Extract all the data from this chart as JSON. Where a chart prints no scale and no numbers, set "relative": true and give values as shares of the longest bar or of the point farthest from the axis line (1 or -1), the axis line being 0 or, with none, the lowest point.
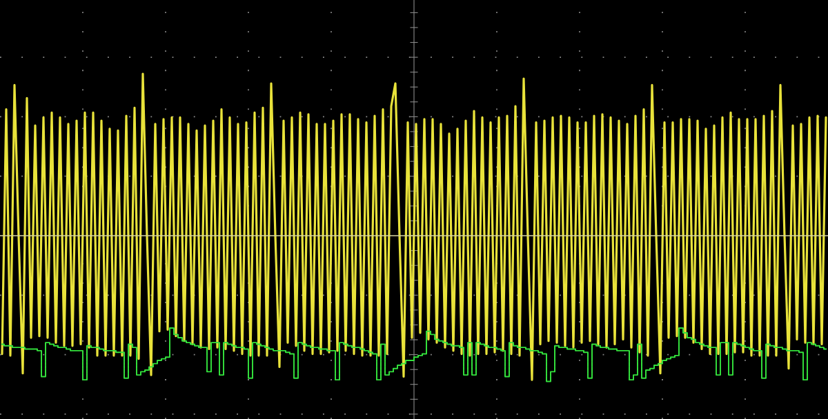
{
  "chart_data": {
    "type": "line",
    "relative": true,
    "grid": true,
    "categories": [
      null,
      null,
      null,
      null,
      null,
      null,
      null,
      null,
      null,
      null,
      null,
      null,
      null,
      null,
      null,
      null,
      null,
      null,
      null,
      null,
      null,
      null,
      null,
      null,
      null,
      null,
      null,
      null,
      null,
      null,
      null,
      null,
      null,
      null,
      null,
      null,
      null,
      null,
      null,
      null,
      null,
      null,
      null,
      null,
      null,
      null,
      null,
      null,
      null,
      null,
      null,
      null,
      null,
      null,
      null,
      null,
      null,
      null,
      null,
      null,
      null,
      null,
      null,
      null,
      null,
      null,
      null,
      null,
      null,
      null,
      null,
      null,
      null,
      null,
      null,
      null,
      null,
      null,
      null,
      null,
      null,
      null,
      null,
      null,
      null,
      null,
      null,
      null,
      null,
      null,
      null,
      null,
      null,
      null,
      null,
      null,
      null,
      null,
      null,
      null,
      null,
      null,
      null,
      null,
      null,
      null,
      null,
      null,
      null,
      null,
      null,
      null,
      null,
      null,
      null,
      null,
      null,
      null,
      null,
      null,
      null,
      null,
      null,
      null,
      null,
      null,
      null,
      null,
      null,
      null,
      null,
      null,
      null,
      null,
      null,
      null,
      null,
      null,
      null,
      null,
      null,
      null,
      null,
      null,
      null,
      null,
      null,
      null,
      null,
      null,
      null,
      null,
      null,
      null,
      null,
      null,
      null,
      null,
      null,
      null,
      null,
      null,
      null,
      null,
      null,
      null,
      null,
      null,
      null,
      null,
      null,
      null,
      null,
      null,
      null,
      null,
      null,
      null,
      null,
      null,
      null,
      null,
      null,
      null,
      null,
      null,
      null,
      null,
      null,
      null,
      null,
      null,
      null,
      null,
      null,
      null,
      null,
      null,
      null,
      null
    ],
    "ref_lines": [
      {
        "axis": "y",
        "value": 0,
        "color": "#d8d6a0"
      }
    ],
    "series": [
      {
        "color": "#e8e23a",
        "values": [
          -0.73,
          0.78,
          -0.74,
          0.93,
          0,
          -0.85,
          0.85,
          -0.63,
          0.68,
          -0.62,
          0.73,
          -0.63,
          0.76,
          -0.66,
          0.73,
          -0.68,
          0.69,
          -0.68,
          0.71,
          -0.67,
          0.76,
          -0.69,
          0.76,
          -0.74,
          0.71,
          -0.74,
          0.66,
          -0.74,
          0.65,
          -0.74,
          0.74,
          -0.74,
          0.79,
          -0.76,
          1.0,
          0,
          -0.86,
          0.69,
          -0.59,
          0.72,
          -0.58,
          0.73,
          -0.62,
          0.73,
          -0.65,
          0.69,
          -0.67,
          0.65,
          -0.69,
          0.68,
          -0.7,
          0.71,
          -0.69,
          0.78,
          -0.7,
          0.73,
          -0.71,
          0.69,
          -0.73,
          0.7,
          -0.74,
          0.76,
          -0.74,
          0.79,
          -0.74,
          0.94,
          0,
          -0.81,
          0.71,
          -0.66,
          0.73,
          -0.68,
          0.76,
          -0.71,
          0.75,
          -0.73,
          0.69,
          -0.73,
          0.69,
          -0.72,
          0.71,
          -0.71,
          0.75,
          -0.71,
          0.75,
          -0.73,
          0.72,
          -0.74,
          0.7,
          -0.74,
          0.74,
          -0.74,
          0.78,
          -0.73,
          0.8,
          0.94,
          0,
          -0.87,
          0.7,
          -0.63,
          0.69,
          -0.6,
          0.72,
          -0.64,
          0.72,
          -0.66,
          0.69,
          -0.69,
          0.63,
          -0.71,
          0.66,
          -0.73,
          0.71,
          -0.74,
          0.77,
          -0.73,
          0.73,
          -0.73,
          0.7,
          -0.72,
          0.73,
          -0.71,
          0.74,
          -0.73,
          0.8,
          -0.74,
          0.97,
          0,
          -0.89,
          0.7,
          -0.67,
          0.71,
          -0.65,
          0.73,
          -0.66,
          0.74,
          -0.68,
          0.73,
          -0.69,
          0.7,
          -0.66,
          0.7,
          -0.65,
          0.74,
          -0.67,
          0.75,
          -0.69,
          0.73,
          -0.67,
          0.71,
          -0.64,
          0.69,
          -0.69,
          0.74,
          -0.72,
          0.78,
          -0.74,
          0.93,
          0,
          -0.85,
          0.7,
          -0.63,
          0.7,
          -0.62,
          0.72,
          -0.63,
          0.72,
          -0.66,
          0.71,
          -0.7,
          0.66,
          -0.73,
          0.68,
          -0.73,
          0.73,
          -0.73,
          0.76,
          -0.72,
          0.72,
          -0.72,
          0.72,
          -0.74,
          0.72,
          -0.74,
          0.74,
          -0.74,
          0.77,
          -0.74,
          0.93,
          0,
          -0.82,
          0.68,
          -0.64,
          0.69,
          -0.66,
          0.73,
          -0.67,
          0.74,
          -0.67,
          0.73
        ]
      },
      {
        "type": "step",
        "color": "#33e03c",
        "values": [
          -0.67,
          -0.68,
          -0.68,
          -0.69,
          -0.69,
          -0.69,
          -0.7,
          -0.7,
          -0.7,
          -0.71,
          -0.87,
          -0.66,
          -0.67,
          -0.68,
          -0.69,
          -0.69,
          -0.7,
          -0.71,
          -0.71,
          -0.71,
          -0.89,
          -0.68,
          -0.69,
          -0.69,
          -0.7,
          -0.71,
          -0.71,
          -0.71,
          -0.72,
          -0.72,
          -0.88,
          -0.67,
          -0.69,
          -0.86,
          -0.84,
          -0.83,
          -0.81,
          -0.79,
          -0.77,
          -0.76,
          -0.75,
          -0.57,
          -0.61,
          -0.63,
          -0.65,
          -0.66,
          -0.67,
          -0.68,
          -0.69,
          -0.69,
          -0.84,
          -0.66,
          -0.66,
          -0.86,
          -0.66,
          -0.67,
          -0.68,
          -0.69,
          -0.69,
          -0.7,
          -0.88,
          -0.66,
          -0.67,
          -0.68,
          -0.69,
          -0.7,
          -0.71,
          -0.71,
          -0.71,
          -0.72,
          -0.73,
          -0.88,
          -0.66,
          -0.67,
          -0.68,
          -0.69,
          -0.69,
          -0.7,
          -0.7,
          -0.71,
          -0.71,
          -0.89,
          -0.66,
          -0.67,
          -0.68,
          -0.69,
          -0.69,
          -0.7,
          -0.71,
          -0.72,
          -0.73,
          -0.89,
          -0.67,
          -0.86,
          -0.84,
          -0.82,
          -0.8,
          -0.79,
          -0.77,
          -0.77,
          -0.75,
          -0.74,
          -0.73,
          -0.59,
          -0.61,
          -0.64,
          -0.65,
          -0.66,
          -0.67,
          -0.68,
          -0.68,
          -0.69,
          -0.86,
          -0.66,
          -0.86,
          -0.66,
          -0.67,
          -0.68,
          -0.69,
          -0.69,
          -0.7,
          -0.71,
          -0.87,
          -0.66,
          -0.68,
          -0.69,
          -0.69,
          -0.7,
          -0.71,
          -0.71,
          -0.72,
          -0.73,
          -0.9,
          -0.84,
          -0.68,
          -0.69,
          -0.69,
          -0.7,
          -0.7,
          -0.71,
          -0.71,
          -0.72,
          -0.88,
          -0.67,
          -0.68,
          -0.69,
          -0.69,
          -0.7,
          -0.7,
          -0.71,
          -0.71,
          -0.71,
          -0.89,
          -0.86,
          -0.67,
          -0.88,
          -0.83,
          -0.82,
          -0.8,
          -0.79,
          -0.77,
          -0.76,
          -0.75,
          -0.74,
          -0.57,
          -0.6,
          -0.63,
          -0.64,
          -0.66,
          -0.67,
          -0.68,
          -0.69,
          -0.69,
          -0.86,
          -0.66,
          -0.66,
          -0.86,
          -0.66,
          -0.67,
          -0.68,
          -0.69,
          -0.7,
          -0.71,
          -0.71,
          -0.88,
          -0.67,
          -0.68,
          -0.69,
          -0.69,
          -0.7,
          -0.71,
          -0.71,
          -0.71,
          -0.72,
          -0.89,
          -0.66,
          -0.67,
          -0.68,
          -0.69,
          -0.7
        ]
      }
    ]
  }
}
